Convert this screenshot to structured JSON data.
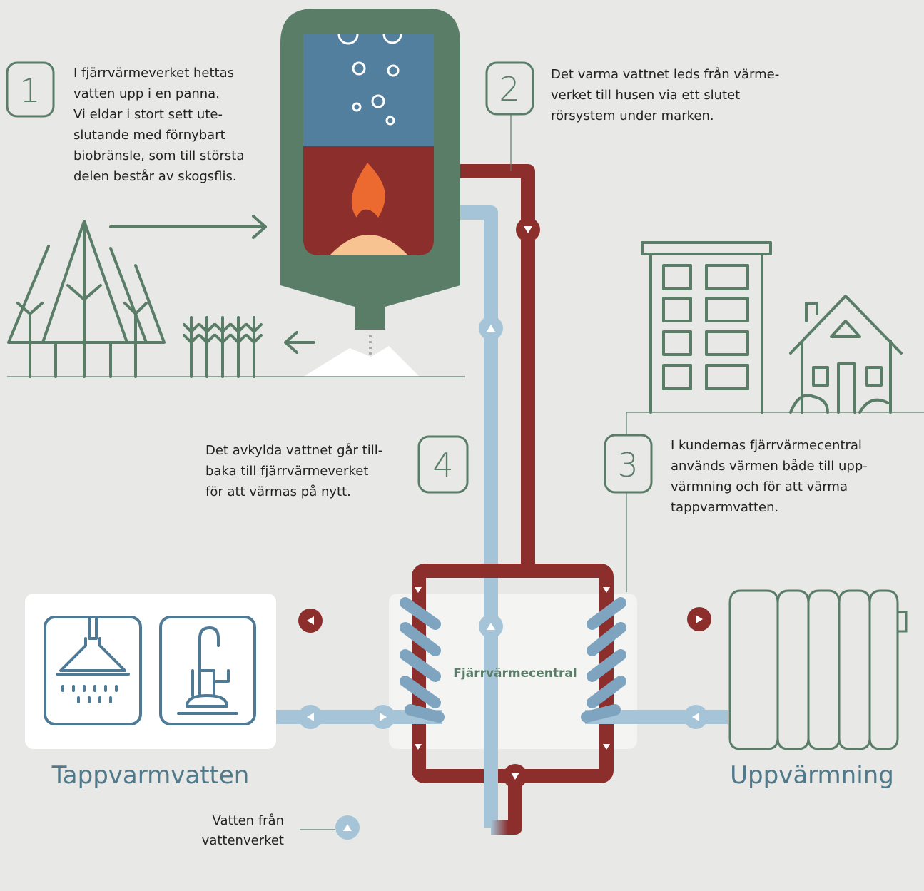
{
  "steps": [
    {
      "number": "1",
      "lines": [
        "I fjärrvärmeverket hettas",
        "vatten upp i en panna.",
        "Vi eldar i stort sett ute-",
        "slutande med förnybart",
        "biobränsle, som till största",
        "delen består av skogsflis."
      ]
    },
    {
      "number": "2",
      "lines": [
        "Det varma vattnet leds från värme-",
        "verket till husen via ett slutet",
        "rörsystem under marken."
      ]
    },
    {
      "number": "3",
      "lines": [
        "I kundernas fjärrvärmecentral",
        "används värmen både till upp-",
        "värmning och för att värma",
        "tappvarmvatten."
      ]
    },
    {
      "number": "4",
      "lines": [
        "Det avkylda vattnet går till-",
        "baka till fjärrvärmeverket",
        "för att värmas på nytt."
      ]
    }
  ],
  "labels": {
    "central": "Fjärrvärmecentral",
    "tap": "Tappvarmvatten",
    "heating": "Uppvärmning",
    "source": [
      "Vatten från",
      "vattenverket"
    ]
  }
}
